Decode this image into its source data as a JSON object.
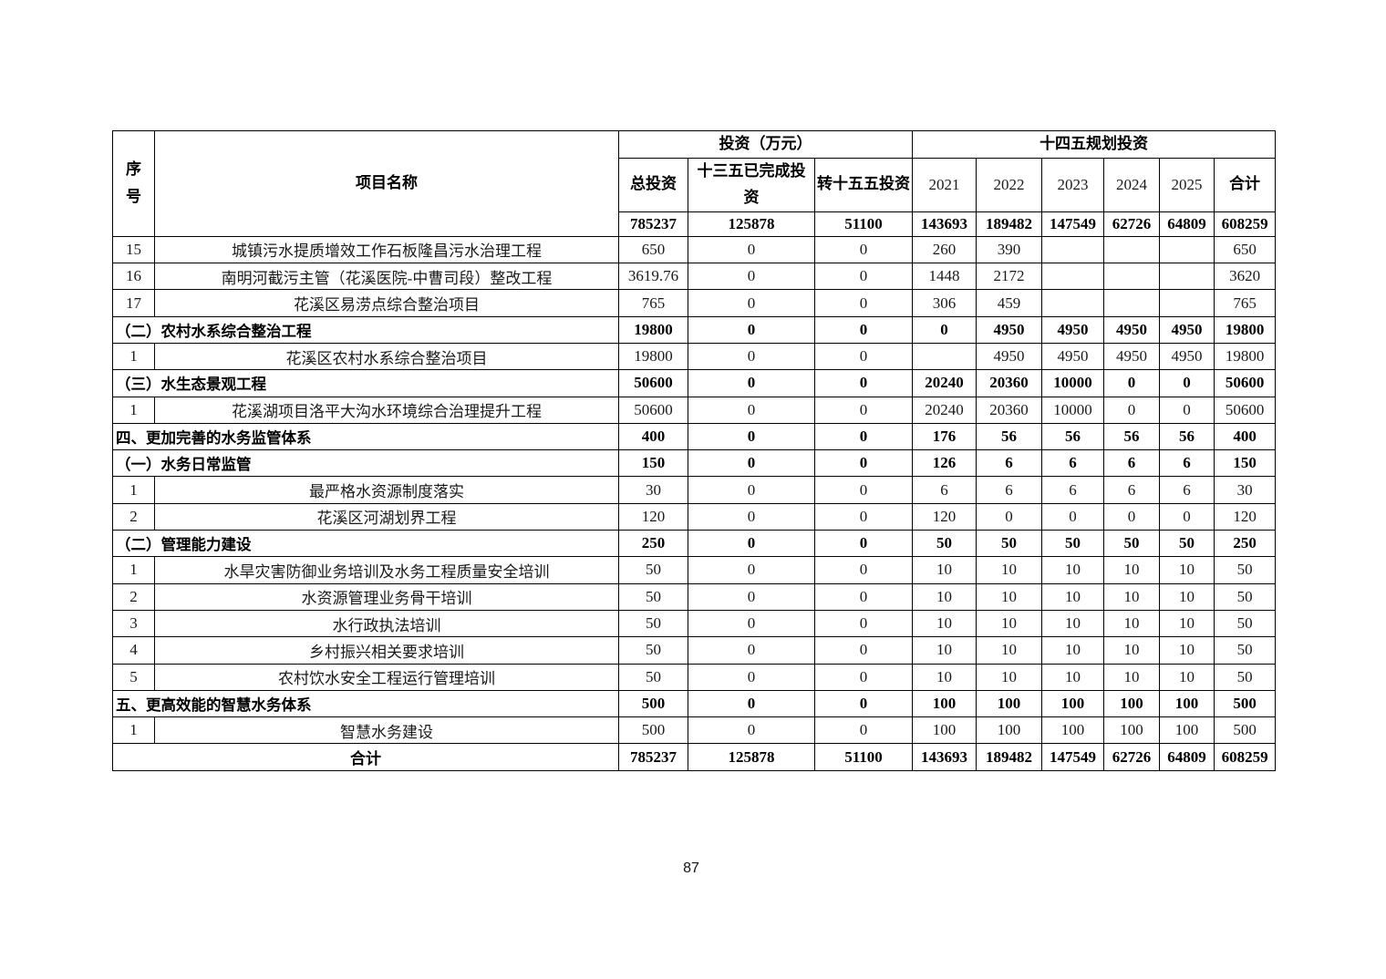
{
  "page": {
    "number": "87"
  },
  "table": {
    "header": {
      "seq": "序号",
      "project_name": "项目名称",
      "investment_group": "投资（万元）",
      "plan_group": "十四五规划投资",
      "col_total_investment": "总投资",
      "col_135_completed": "十三五已完成投资",
      "col_155_transfer": "转十五五投资",
      "years": [
        "2021",
        "2022",
        "2023",
        "2024",
        "2025"
      ],
      "col_sum": "合计"
    },
    "totals_row": [
      "785237",
      "125878",
      "51100",
      "143693",
      "189482",
      "147549",
      "62726",
      "64809",
      "608259"
    ],
    "rows": [
      {
        "no": "15",
        "name": "城镇污水提质增效工作石板隆昌污水治理工程",
        "type": "item",
        "values": [
          "650",
          "0",
          "0",
          "260",
          "390",
          "",
          "",
          "",
          "650"
        ]
      },
      {
        "no": "16",
        "name": "南明河截污主管（花溪医院-中曹司段）整改工程",
        "type": "item",
        "values": [
          "3619.76",
          "0",
          "0",
          "1448",
          "2172",
          "",
          "",
          "",
          "3620"
        ]
      },
      {
        "no": "17",
        "name": "花溪区易涝点综合整治项目",
        "type": "item",
        "values": [
          "765",
          "0",
          "0",
          "306",
          "459",
          "",
          "",
          "",
          "765"
        ]
      },
      {
        "no": "",
        "name": "（二）农村水系综合整治工程",
        "type": "section",
        "values": [
          "19800",
          "0",
          "0",
          "0",
          "4950",
          "4950",
          "4950",
          "4950",
          "19800"
        ]
      },
      {
        "no": "1",
        "name": "花溪区农村水系综合整治项目",
        "type": "item",
        "values": [
          "19800",
          "0",
          "0",
          "",
          "4950",
          "4950",
          "4950",
          "4950",
          "19800"
        ]
      },
      {
        "no": "",
        "name": "（三）水生态景观工程",
        "type": "section",
        "values": [
          "50600",
          "0",
          "0",
          "20240",
          "20360",
          "10000",
          "0",
          "0",
          "50600"
        ]
      },
      {
        "no": "1",
        "name": "花溪湖项目洛平大沟水环境综合治理提升工程",
        "type": "item",
        "values": [
          "50600",
          "0",
          "0",
          "20240",
          "20360",
          "10000",
          "0",
          "0",
          "50600"
        ]
      },
      {
        "no": "",
        "name": "四、更加完善的水务监管体系",
        "type": "section",
        "values": [
          "400",
          "0",
          "0",
          "176",
          "56",
          "56",
          "56",
          "56",
          "400"
        ]
      },
      {
        "no": "",
        "name": "（一）水务日常监管",
        "type": "section",
        "values": [
          "150",
          "0",
          "0",
          "126",
          "6",
          "6",
          "6",
          "6",
          "150"
        ]
      },
      {
        "no": "1",
        "name": "最严格水资源制度落实",
        "type": "item",
        "values": [
          "30",
          "0",
          "0",
          "6",
          "6",
          "6",
          "6",
          "6",
          "30"
        ]
      },
      {
        "no": "2",
        "name": "花溪区河湖划界工程",
        "type": "item",
        "values": [
          "120",
          "0",
          "0",
          "120",
          "0",
          "0",
          "0",
          "0",
          "120"
        ]
      },
      {
        "no": "",
        "name": "（二）管理能力建设",
        "type": "section",
        "values": [
          "250",
          "0",
          "0",
          "50",
          "50",
          "50",
          "50",
          "50",
          "250"
        ]
      },
      {
        "no": "1",
        "name": "水旱灾害防御业务培训及水务工程质量安全培训",
        "type": "item",
        "values": [
          "50",
          "0",
          "0",
          "10",
          "10",
          "10",
          "10",
          "10",
          "50"
        ]
      },
      {
        "no": "2",
        "name": "水资源管理业务骨干培训",
        "type": "item",
        "values": [
          "50",
          "0",
          "0",
          "10",
          "10",
          "10",
          "10",
          "10",
          "50"
        ]
      },
      {
        "no": "3",
        "name": "水行政执法培训",
        "type": "item",
        "values": [
          "50",
          "0",
          "0",
          "10",
          "10",
          "10",
          "10",
          "10",
          "50"
        ]
      },
      {
        "no": "4",
        "name": "乡村振兴相关要求培训",
        "type": "item",
        "values": [
          "50",
          "0",
          "0",
          "10",
          "10",
          "10",
          "10",
          "10",
          "50"
        ]
      },
      {
        "no": "5",
        "name": "农村饮水安全工程运行管理培训",
        "type": "item",
        "values": [
          "50",
          "0",
          "0",
          "10",
          "10",
          "10",
          "10",
          "10",
          "50"
        ]
      },
      {
        "no": "",
        "name": "五、更高效能的智慧水务体系",
        "type": "section",
        "values": [
          "500",
          "0",
          "0",
          "100",
          "100",
          "100",
          "100",
          "100",
          "500"
        ]
      },
      {
        "no": "1",
        "name": "智慧水务建设",
        "type": "item",
        "values": [
          "500",
          "0",
          "0",
          "100",
          "100",
          "100",
          "100",
          "100",
          "500"
        ]
      },
      {
        "no": "",
        "name": "合计",
        "type": "grand_total",
        "values": [
          "785237",
          "125878",
          "51100",
          "143693",
          "189482",
          "147549",
          "62726",
          "64809",
          "608259"
        ]
      }
    ]
  }
}
